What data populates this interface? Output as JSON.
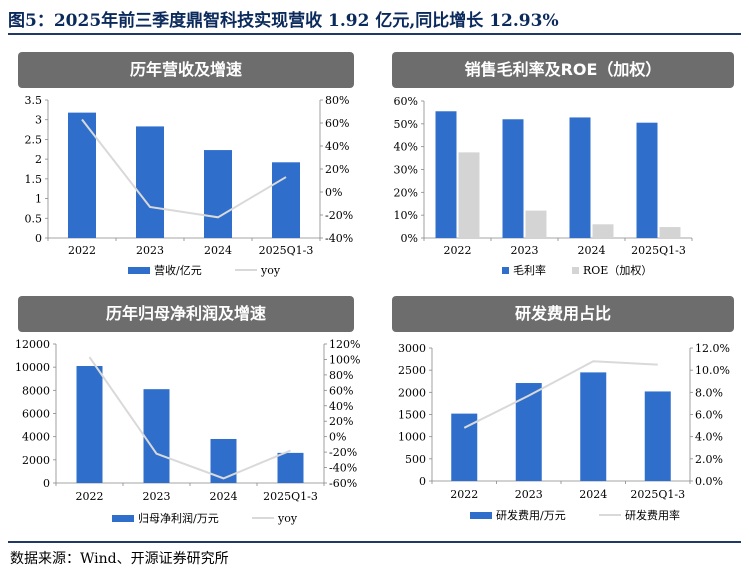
{
  "figure_title": "图5：2025年前三季度鼎智科技实现营收 1.92 亿元,同比增长 12.93%",
  "source": "数据来源：Wind、开源证券研究所",
  "colors": {
    "bar_primary": "#2f6fcb",
    "bar_secondary": "#d4d4d4",
    "line": "#d9d9d9",
    "header_bg": "#6d6d6d",
    "rule": "#1f3864"
  },
  "chart_data": [
    {
      "type": "bar",
      "title": "历年营收及增速",
      "categories": [
        "2022",
        "2023",
        "2024",
        "2025Q1-3"
      ],
      "series": [
        {
          "name": "营收/亿元",
          "kind": "bar",
          "axis": "left",
          "values": [
            3.18,
            2.83,
            2.23,
            1.92
          ]
        },
        {
          "name": "yoy",
          "kind": "line",
          "axis": "right",
          "values": [
            63,
            -13,
            -22,
            13
          ]
        }
      ],
      "ylim_left": [
        0,
        3.5
      ],
      "yticks_left": [
        "0",
        "0.5",
        "1",
        "1.5",
        "2",
        "2.5",
        "3",
        "3.5"
      ],
      "ylim_right": [
        -40,
        80
      ],
      "yticks_right": [
        "-40%",
        "-20%",
        "0%",
        "20%",
        "40%",
        "60%",
        "80%"
      ]
    },
    {
      "type": "bar",
      "title": "销售毛利率及ROE（加权）",
      "categories": [
        "2022",
        "2023",
        "2024",
        "2025Q1-3"
      ],
      "series": [
        {
          "name": "毛利率",
          "kind": "bar",
          "axis": "left",
          "values": [
            55.5,
            52.0,
            52.8,
            50.5
          ]
        },
        {
          "name": "ROE（加权）",
          "kind": "bar2",
          "axis": "left",
          "values": [
            37.5,
            12.0,
            6.0,
            4.8
          ]
        }
      ],
      "ylim_left": [
        0,
        60
      ],
      "yticks_left": [
        "0%",
        "10%",
        "20%",
        "30%",
        "40%",
        "50%",
        "60%"
      ]
    },
    {
      "type": "bar",
      "title": "历年归母净利润及增速",
      "categories": [
        "2022",
        "2023",
        "2024",
        "2025Q1-3"
      ],
      "series": [
        {
          "name": "归母净利润/万元",
          "kind": "bar",
          "axis": "left",
          "values": [
            10100,
            8100,
            3800,
            2600
          ]
        },
        {
          "name": "yoy",
          "kind": "line",
          "axis": "right",
          "values": [
            103,
            -22,
            -54,
            -18
          ]
        }
      ],
      "ylim_left": [
        0,
        12000
      ],
      "yticks_left": [
        "0",
        "2000",
        "4000",
        "6000",
        "8000",
        "10000",
        "12000"
      ],
      "ylim_right": [
        -60,
        120
      ],
      "yticks_right": [
        "-60%",
        "-40%",
        "-20%",
        "0%",
        "20%",
        "40%",
        "60%",
        "80%",
        "100%",
        "120%"
      ]
    },
    {
      "type": "bar",
      "title": "研发费用占比",
      "categories": [
        "2022",
        "2023",
        "2024",
        "2025Q1-3"
      ],
      "series": [
        {
          "name": "研发费用/万元",
          "kind": "bar",
          "axis": "left",
          "values": [
            1520,
            2210,
            2450,
            2020
          ]
        },
        {
          "name": "研发费用率",
          "kind": "line",
          "axis": "right",
          "values": [
            4.8,
            7.7,
            10.8,
            10.5
          ]
        }
      ],
      "ylim_left": [
        0,
        3000
      ],
      "yticks_left": [
        "0",
        "500",
        "1000",
        "1500",
        "2000",
        "2500",
        "3000"
      ],
      "ylim_right": [
        0,
        12
      ],
      "yticks_right": [
        "0.0%",
        "2.0%",
        "4.0%",
        "6.0%",
        "8.0%",
        "10.0%",
        "12.0%"
      ]
    }
  ]
}
